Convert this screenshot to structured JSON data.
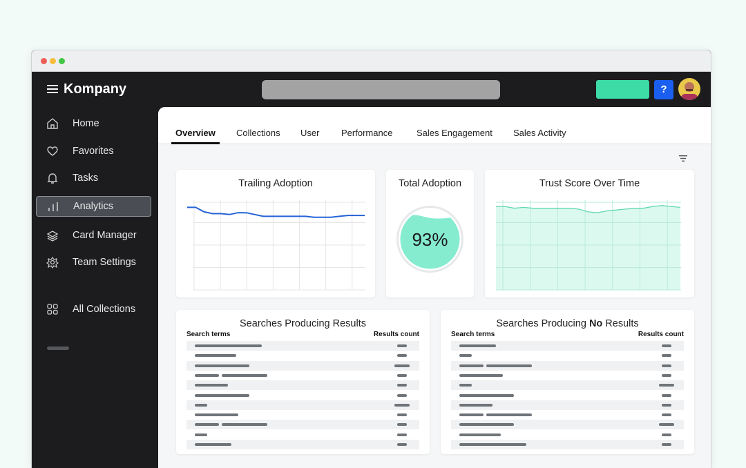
{
  "app": {
    "brand": "Kompany",
    "help_label": "?"
  },
  "window": {
    "dots": [
      "#ee5e57",
      "#f5bd3a",
      "#43c644"
    ]
  },
  "sidebar": {
    "items": [
      {
        "label": "Home",
        "icon": "home-icon"
      },
      {
        "label": "Favorites",
        "icon": "heart-icon"
      },
      {
        "label": "Tasks",
        "icon": "bell-icon"
      },
      {
        "label": "Analytics",
        "icon": "bar-chart-icon",
        "active": true
      },
      {
        "label": "Card Manager",
        "icon": "layers-icon"
      },
      {
        "label": "Team Settings",
        "icon": "gear-icon"
      },
      {
        "label": "All Collections",
        "icon": "grid-icon"
      }
    ]
  },
  "tabs": [
    {
      "label": "Overview",
      "active": true
    },
    {
      "label": "Collections"
    },
    {
      "label": "User"
    },
    {
      "label": "Performance"
    },
    {
      "label": "Sales Engagement"
    },
    {
      "label": "Sales Activity"
    }
  ],
  "colors": {
    "accent": "#3ddba6",
    "help": "#1a5ff0",
    "line": "#2463d6",
    "trust_fill": "#d6f8ec",
    "trust_line": "#5fd9ab"
  },
  "cards": {
    "trailing": {
      "title": "Trailing Adoption"
    },
    "total": {
      "title": "Total Adoption",
      "value": "93%",
      "fill_percent": 93
    },
    "trust": {
      "title": "Trust Score Over Time"
    },
    "results": {
      "title": "Searches Producing Results",
      "col1": "Search terms",
      "col2": "Results count"
    },
    "noresults": {
      "title_pre": "Searches Producing ",
      "title_bold": "No",
      "title_post": " Results",
      "col1": "Search terms",
      "col2": "Results count"
    }
  },
  "chart_data": [
    {
      "type": "line",
      "title": "Trailing Adoption",
      "grid": true,
      "ylim": [
        0,
        100
      ],
      "values": [
        92,
        92,
        87,
        85,
        85,
        84,
        86,
        86,
        84,
        82,
        82,
        82,
        82,
        82,
        82,
        81,
        81,
        81,
        82,
        83,
        83,
        83
      ]
    },
    {
      "type": "area",
      "title": "Trust Score Over Time",
      "grid": true,
      "ylim": [
        0,
        100
      ],
      "values": [
        93,
        93,
        91,
        92,
        91,
        91,
        91,
        91,
        91,
        90,
        87,
        86,
        88,
        89,
        90,
        91,
        91,
        93,
        94,
        93,
        92
      ]
    }
  ]
}
